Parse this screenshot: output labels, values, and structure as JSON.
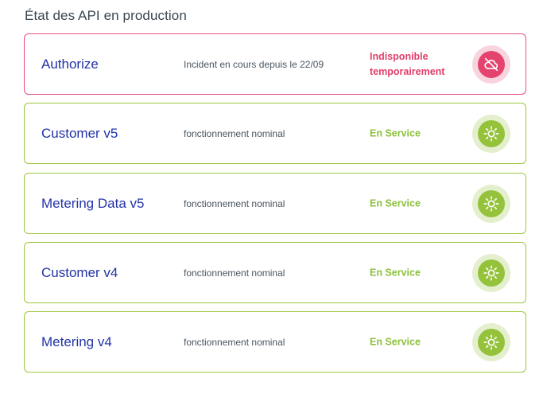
{
  "page": {
    "title": "État des API en production"
  },
  "apis": [
    {
      "name": "Authorize",
      "description": "Incident en cours depuis le 22/09",
      "status_line1": "Indisponible",
      "status_line2": "temporairement",
      "state": "down",
      "icon": "cloud-off-icon"
    },
    {
      "name": "Customer v5",
      "description": "fonctionnement nominal",
      "status_line1": "En Service",
      "status_line2": "",
      "state": "ok",
      "icon": "sun-icon"
    },
    {
      "name": "Metering Data v5",
      "description": "fonctionnement nominal",
      "status_line1": "En Service",
      "status_line2": "",
      "state": "ok",
      "icon": "sun-icon"
    },
    {
      "name": "Customer v4",
      "description": "fonctionnement nominal",
      "status_line1": "En Service",
      "status_line2": "",
      "state": "ok",
      "icon": "sun-icon"
    },
    {
      "name": "Metering v4",
      "description": "fonctionnement nominal",
      "status_line1": "En Service",
      "status_line2": "",
      "state": "ok",
      "icon": "sun-icon"
    }
  ],
  "colors": {
    "ok": "#95c23b",
    "ok_text": "#8cc03b",
    "down": "#e4436e",
    "api_name": "#2233a7"
  }
}
